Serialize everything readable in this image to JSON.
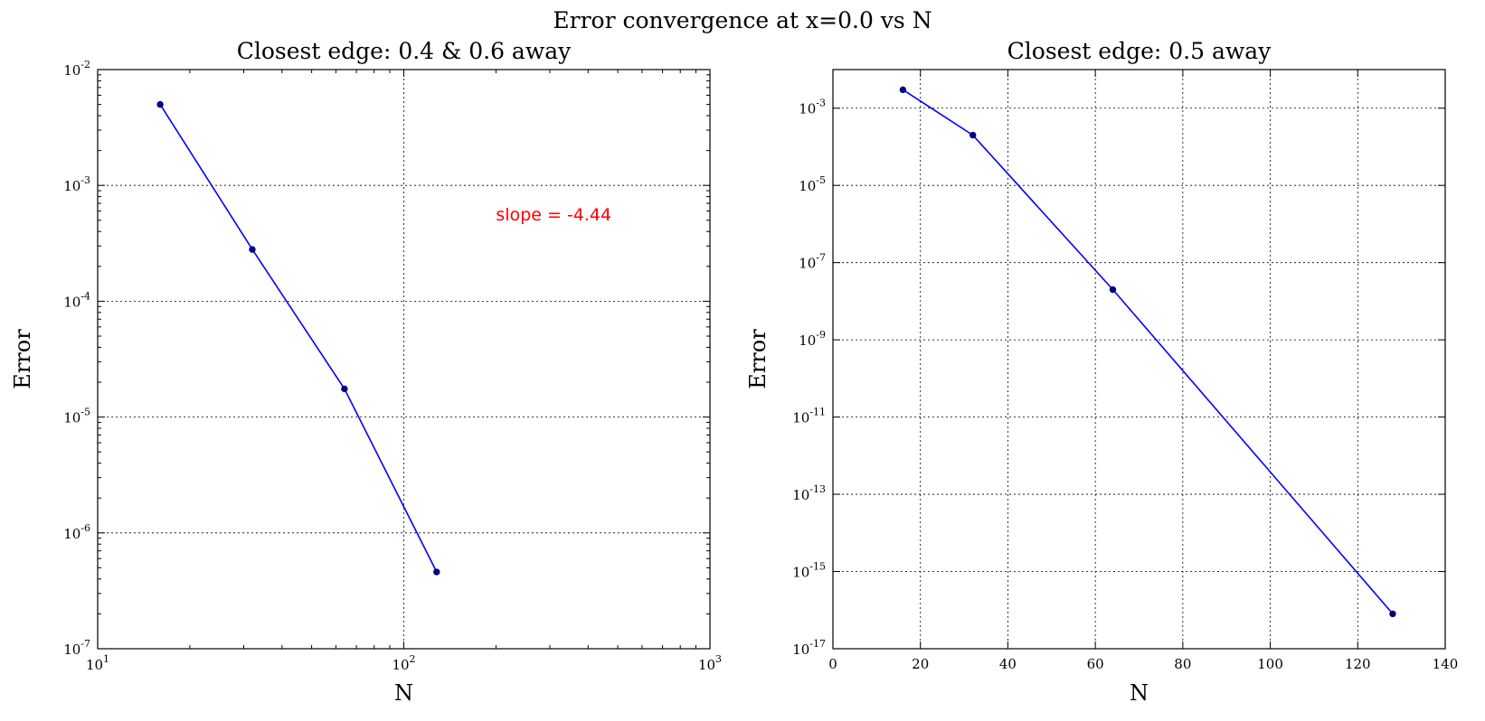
{
  "figure": {
    "suptitle": "Error convergence at x=0.0 vs N"
  },
  "colors": {
    "line": "#0000ff",
    "marker": "#00007f",
    "annotation": "#ff0000",
    "grid": "#000000"
  },
  "chart_data": [
    {
      "type": "line",
      "title": "Closest edge: 0.4 & 0.6 away",
      "xlabel": "N",
      "ylabel": "Error",
      "xscale": "log",
      "yscale": "log",
      "xlim": [
        10,
        1000
      ],
      "ylim": [
        1e-07,
        0.01
      ],
      "xticks": [
        {
          "value": 10,
          "base": "10",
          "exp": "1"
        },
        {
          "value": 100,
          "base": "10",
          "exp": "2"
        },
        {
          "value": 1000,
          "base": "10",
          "exp": "3"
        }
      ],
      "yticks": [
        {
          "value": 1e-07,
          "base": "10",
          "exp": "-7"
        },
        {
          "value": 1e-06,
          "base": "10",
          "exp": "-6"
        },
        {
          "value": 1e-05,
          "base": "10",
          "exp": "-5"
        },
        {
          "value": 0.0001,
          "base": "10",
          "exp": "-4"
        },
        {
          "value": 0.001,
          "base": "10",
          "exp": "-3"
        },
        {
          "value": 0.01,
          "base": "10",
          "exp": "-2"
        }
      ],
      "grid": true,
      "series": [
        {
          "x": [
            16,
            32,
            64,
            128
          ],
          "y": [
            0.005,
            0.00028,
            1.75e-05,
            4.6e-07
          ]
        }
      ],
      "annotations": [
        {
          "text": "slope = -4.44",
          "x": 200,
          "y": 0.0005
        }
      ]
    },
    {
      "type": "line",
      "title": "Closest edge: 0.5 away",
      "xlabel": "N",
      "ylabel": "Error",
      "xscale": "linear",
      "yscale": "log",
      "xlim": [
        0,
        140
      ],
      "ylim": [
        1e-17,
        0.01
      ],
      "xticks": [
        {
          "value": 0,
          "label": "0"
        },
        {
          "value": 20,
          "label": "20"
        },
        {
          "value": 40,
          "label": "40"
        },
        {
          "value": 60,
          "label": "60"
        },
        {
          "value": 80,
          "label": "80"
        },
        {
          "value": 100,
          "label": "100"
        },
        {
          "value": 120,
          "label": "120"
        },
        {
          "value": 140,
          "label": "140"
        }
      ],
      "yticks": [
        {
          "value": 1e-17,
          "base": "10",
          "exp": "-17"
        },
        {
          "value": 1e-15,
          "base": "10",
          "exp": "-15"
        },
        {
          "value": 1e-13,
          "base": "10",
          "exp": "-13"
        },
        {
          "value": 1e-11,
          "base": "10",
          "exp": "-11"
        },
        {
          "value": 1e-09,
          "base": "10",
          "exp": "-9"
        },
        {
          "value": 1e-07,
          "base": "10",
          "exp": "-7"
        },
        {
          "value": 1e-05,
          "base": "10",
          "exp": "-5"
        },
        {
          "value": 0.001,
          "base": "10",
          "exp": "-3"
        }
      ],
      "grid": true,
      "series": [
        {
          "x": [
            16,
            32,
            64,
            128
          ],
          "y": [
            0.003,
            0.0002,
            2e-08,
            8e-17
          ]
        }
      ],
      "annotations": []
    }
  ]
}
